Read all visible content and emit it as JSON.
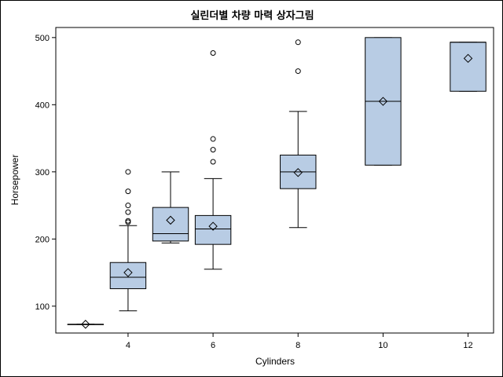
{
  "chart_data": {
    "type": "box",
    "title": "실린더별 차량 마력 상자그림",
    "xlabel": "Cylinders",
    "ylabel": "Horsepower",
    "x_ticks": [
      4,
      6,
      8,
      10,
      12
    ],
    "y_ticks": [
      100,
      200,
      300,
      400,
      500
    ],
    "xlim": [
      2.3,
      12.6
    ],
    "ylim": [
      60,
      515
    ],
    "colors": {
      "box_fill": "#b8cce4",
      "line": "#000000"
    },
    "groups": [
      {
        "x": 3,
        "min": 73,
        "q1": 73,
        "median": 73,
        "q3": 73,
        "max": 73,
        "mean": 73,
        "outliers": []
      },
      {
        "x": 4,
        "min": 93,
        "q1": 126,
        "median": 143,
        "q3": 165,
        "max": 220,
        "mean": 150,
        "outliers": [
          225,
          227,
          240,
          250,
          271,
          300
        ]
      },
      {
        "x": 5,
        "min": 194,
        "q1": 197,
        "median": 208,
        "q3": 247,
        "max": 300,
        "mean": 228,
        "outliers": []
      },
      {
        "x": 6,
        "min": 155,
        "q1": 192,
        "median": 215,
        "q3": 235,
        "max": 290,
        "mean": 219,
        "outliers": [
          315,
          333,
          349,
          477
        ]
      },
      {
        "x": 8,
        "min": 217,
        "q1": 275,
        "median": 300,
        "q3": 325,
        "max": 390,
        "mean": 299,
        "outliers": [
          450,
          493
        ]
      },
      {
        "x": 10,
        "min": 310,
        "q1": 310,
        "median": 405,
        "q3": 500,
        "max": 500,
        "mean": 405,
        "outliers": []
      },
      {
        "x": 12,
        "min": 420,
        "q1": 420,
        "median": 493,
        "q3": 493,
        "max": 493,
        "mean": 469,
        "outliers": []
      }
    ]
  }
}
